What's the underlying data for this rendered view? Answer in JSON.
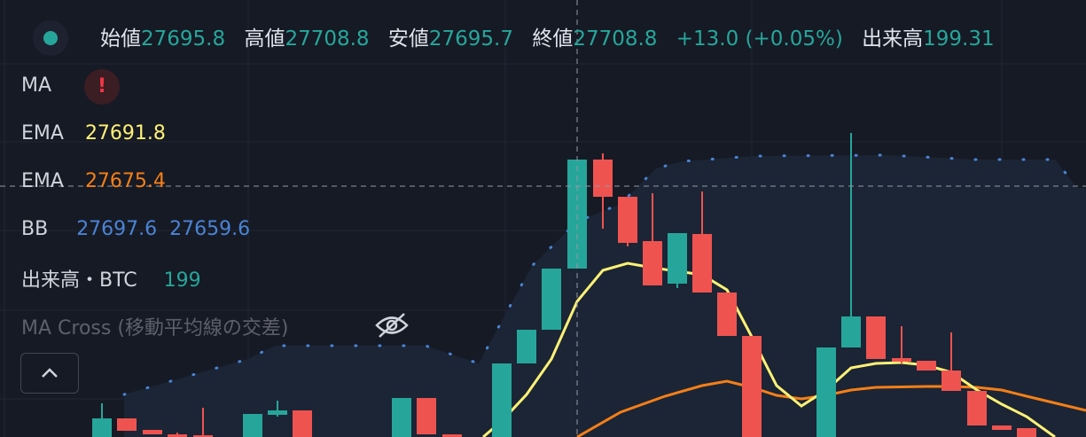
{
  "ohlc": {
    "open_label": "始値",
    "open": "27695.8",
    "high_label": "高値",
    "high": "27708.8",
    "low_label": "安値",
    "low": "27695.7",
    "close_label": "終値",
    "close": "27708.8",
    "change": "+13.0 (+0.05%)",
    "volume_label": "出来高",
    "volume": "199.31"
  },
  "indicators": [
    {
      "name": "MA"
    },
    {
      "name": "EMA",
      "values": [
        "27691.8"
      ]
    },
    {
      "name": "EMA",
      "values": [
        "27675.4"
      ]
    },
    {
      "name": "BB",
      "values": [
        "27697.6",
        "27659.6"
      ]
    },
    {
      "name": "出来高・BTC",
      "values": [
        "199"
      ]
    },
    {
      "name": "MA Cross (移動平均線の交差)"
    }
  ]
}
